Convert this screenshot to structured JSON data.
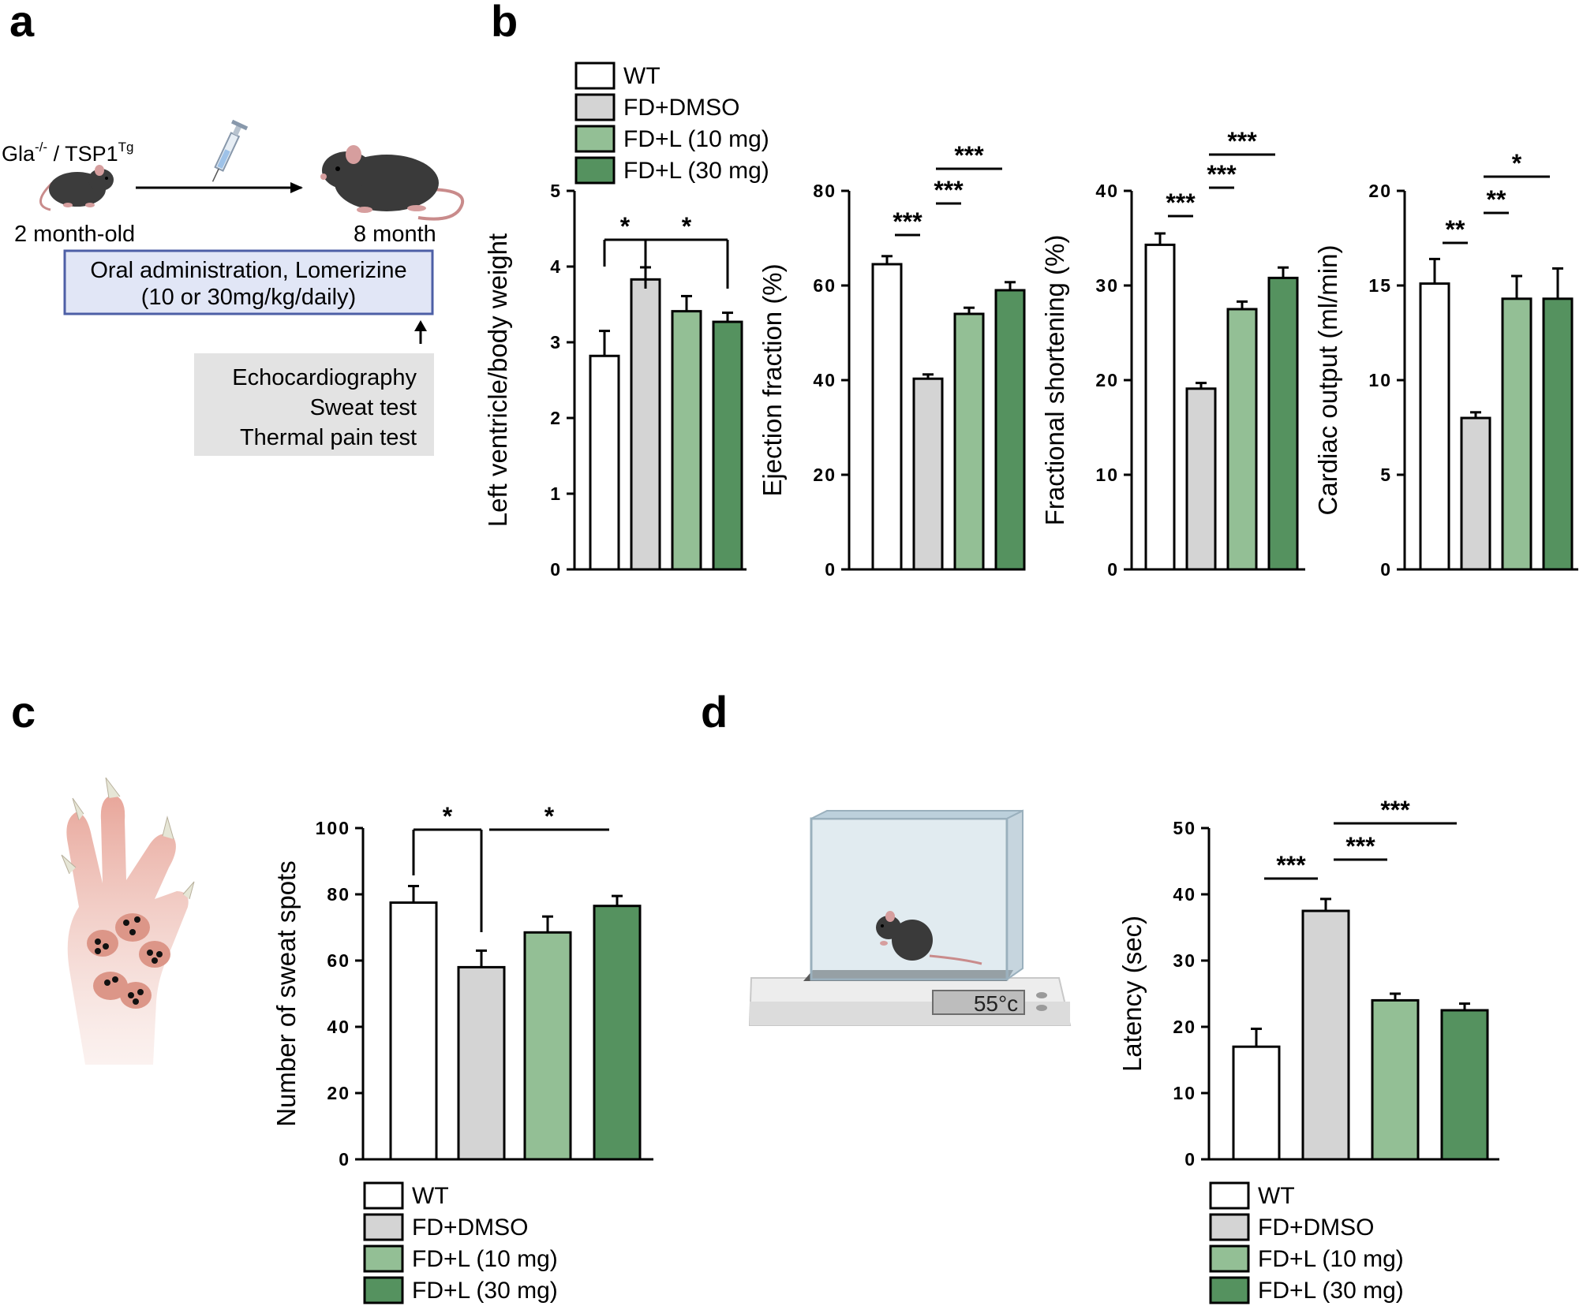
{
  "panel_labels": [
    "a",
    "b",
    "c",
    "d"
  ],
  "groups": [
    "WT",
    "FD+DMSO",
    "FD+L (10 mg)",
    "FD+L (30 mg)"
  ],
  "colors": {
    "WT": "#ffffff",
    "FD+DMSO": "#d4d4d4",
    "FD+L (10 mg)": "#93bf95",
    "FD+L (30 mg)": "#55925f"
  },
  "schematic": {
    "genotype": "Gla",
    "genotype_sup": "-/-",
    "separator": " / ",
    "transgene": "TSP1",
    "transgene_sup": "Tg",
    "start_age": "2 month-old",
    "end_age": "8 month",
    "treatment_line1": "Oral administration, Lomerizine",
    "treatment_line2": "(10 or 30mg/kg/daily)",
    "tests": [
      "Echocardiography",
      "Sweat test",
      "Thermal pain test"
    ],
    "plate_temp": "55°c"
  },
  "chart_data": [
    {
      "id": "lv",
      "panel": "b",
      "type": "bar",
      "title": "",
      "xlabel": "",
      "ylabel": "Left ventricle/body weight",
      "categories": [
        "WT",
        "FD+DMSO",
        "FD+L (10 mg)",
        "FD+L (30 mg)"
      ],
      "values": [
        2.82,
        3.83,
        3.41,
        3.27
      ],
      "errors": [
        0.33,
        0.16,
        0.2,
        0.12
      ],
      "ylim": [
        0,
        5
      ],
      "yticks": [
        "0",
        "1",
        "2",
        "3",
        "4",
        "5"
      ],
      "significance": [
        {
          "from": 0,
          "to": 1,
          "label": "*"
        },
        {
          "from": 1,
          "to": 3,
          "label": "*"
        }
      ]
    },
    {
      "id": "ef",
      "panel": "b",
      "type": "bar",
      "title": "",
      "xlabel": "",
      "ylabel": "Ejection fraction (%)",
      "categories": [
        "WT",
        "FD+DMSO",
        "FD+L (10 mg)",
        "FD+L (30 mg)"
      ],
      "values": [
        64.5,
        40.3,
        54.0,
        59.0
      ],
      "errors": [
        1.7,
        0.9,
        1.3,
        1.7
      ],
      "ylim": [
        0,
        80
      ],
      "yticks": [
        "0",
        "20",
        "40",
        "60",
        "80"
      ],
      "significance": [
        {
          "from": 0,
          "to": 1,
          "label": "***"
        },
        {
          "from": 1,
          "to": 2,
          "label": "***"
        },
        {
          "from": 1,
          "to": 3,
          "label": "***"
        }
      ]
    },
    {
      "id": "fs",
      "panel": "b",
      "type": "bar",
      "title": "",
      "xlabel": "",
      "ylabel": "Fractional shortening (%)",
      "categories": [
        "WT",
        "FD+DMSO",
        "FD+L (10 mg)",
        "FD+L (30 mg)"
      ],
      "values": [
        34.3,
        19.1,
        27.5,
        30.8
      ],
      "errors": [
        1.2,
        0.6,
        0.8,
        1.1
      ],
      "ylim": [
        0,
        40
      ],
      "yticks": [
        "0",
        "10",
        "20",
        "30",
        "40"
      ],
      "significance": [
        {
          "from": 0,
          "to": 1,
          "label": "***"
        },
        {
          "from": 1,
          "to": 2,
          "label": "***"
        },
        {
          "from": 1,
          "to": 3,
          "label": "***"
        }
      ]
    },
    {
      "id": "co",
      "panel": "b",
      "type": "bar",
      "title": "",
      "xlabel": "",
      "ylabel": "Cardiac output (ml/min)",
      "categories": [
        "WT",
        "FD+DMSO",
        "FD+L (10 mg)",
        "FD+L (30 mg)"
      ],
      "values": [
        15.1,
        8.0,
        14.3,
        14.3
      ],
      "errors": [
        1.3,
        0.3,
        1.2,
        1.6
      ],
      "ylim": [
        0,
        20
      ],
      "yticks": [
        "0",
        "5",
        "10",
        "15",
        "20"
      ],
      "significance": [
        {
          "from": 0,
          "to": 1,
          "label": "**"
        },
        {
          "from": 1,
          "to": 2,
          "label": "**"
        },
        {
          "from": 1,
          "to": 3,
          "label": "*"
        }
      ]
    },
    {
      "id": "sweat",
      "panel": "c",
      "type": "bar",
      "title": "",
      "xlabel": "",
      "ylabel": "Number of sweat spots",
      "categories": [
        "WT",
        "FD+DMSO",
        "FD+L (10 mg)",
        "FD+L (30 mg)"
      ],
      "values": [
        77.5,
        58.0,
        68.5,
        76.5
      ],
      "errors": [
        5.0,
        5.0,
        4.8,
        3.0
      ],
      "ylim": [
        0,
        100
      ],
      "yticks": [
        "0",
        "20",
        "40",
        "60",
        "80",
        "100"
      ],
      "significance": [
        {
          "from": 0,
          "to": 1,
          "label": "*"
        },
        {
          "from": 1,
          "to": 3,
          "label": "*"
        }
      ]
    },
    {
      "id": "latency",
      "panel": "d",
      "type": "bar",
      "title": "",
      "xlabel": "",
      "ylabel": "Latency (sec)",
      "categories": [
        "WT",
        "FD+DMSO",
        "FD+L (10 mg)",
        "FD+L (30 mg)"
      ],
      "values": [
        17.0,
        37.5,
        24.0,
        22.5
      ],
      "errors": [
        2.7,
        1.8,
        1.0,
        1.0
      ],
      "ylim": [
        0,
        50
      ],
      "yticks": [
        "0",
        "10",
        "20",
        "30",
        "40",
        "50"
      ],
      "significance": [
        {
          "from": 0,
          "to": 1,
          "label": "***"
        },
        {
          "from": 1,
          "to": 2,
          "label": "***"
        },
        {
          "from": 1,
          "to": 3,
          "label": "***"
        }
      ]
    }
  ]
}
